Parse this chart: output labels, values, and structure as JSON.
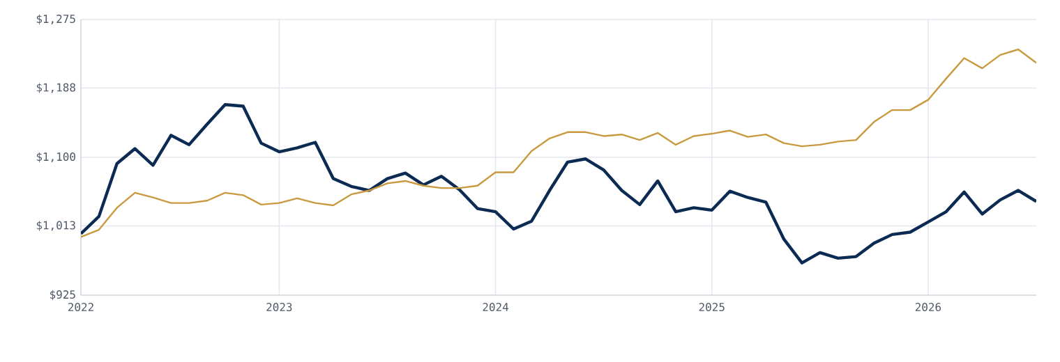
{
  "chart_data": {
    "type": "line",
    "x": [
      "2022-02",
      "2022-03",
      "2022-04",
      "2022-05",
      "2022-06",
      "2022-07",
      "2022-08",
      "2022-09",
      "2022-10",
      "2022-11",
      "2022-12",
      "2023-01",
      "2023-02",
      "2023-03",
      "2023-04",
      "2023-05",
      "2023-06",
      "2023-07",
      "2023-08",
      "2023-09",
      "2023-10",
      "2023-11",
      "2023-12",
      "2024-01",
      "2024-02",
      "2024-03",
      "2024-04",
      "2024-05",
      "2024-06",
      "2024-07",
      "2024-08",
      "2024-09",
      "2024-10",
      "2024-11",
      "2024-12",
      "2025-01",
      "2025-02",
      "2025-03",
      "2025-04",
      "2025-05",
      "2025-06",
      "2025-07",
      "2025-08",
      "2025-09",
      "2025-10",
      "2025-11",
      "2025-12",
      "2026-01",
      "2026-02",
      "2026-03",
      "2026-04",
      "2026-05",
      "2026-06",
      "2026-07"
    ],
    "series": [
      {
        "color": "#0c2b52",
        "values": [
          1003,
          1025,
          1092,
          1111,
          1090,
          1128,
          1116,
          1142,
          1167,
          1165,
          1118,
          1107,
          1112,
          1119,
          1073,
          1063,
          1058,
          1073,
          1080,
          1065,
          1076,
          1059,
          1035,
          1031,
          1009,
          1019,
          1058,
          1094,
          1098,
          1084,
          1058,
          1040,
          1070,
          1031,
          1036,
          1033,
          1057,
          1049,
          1043,
          996,
          966,
          979,
          972,
          974,
          991,
          1002,
          1005,
          1018,
          1031,
          1056,
          1028,
          1046,
          1058,
          1044
        ]
      },
      {
        "color": "#c9993f",
        "values": [
          999,
          1008,
          1036,
          1055,
          1049,
          1042,
          1042,
          1045,
          1055,
          1052,
          1040,
          1042,
          1048,
          1042,
          1039,
          1053,
          1058,
          1067,
          1070,
          1064,
          1061,
          1061,
          1064,
          1081,
          1081,
          1108,
          1124,
          1132,
          1132,
          1127,
          1129,
          1122,
          1131,
          1116,
          1127,
          1130,
          1134,
          1126,
          1129,
          1118,
          1114,
          1116,
          1120,
          1122,
          1145,
          1160,
          1160,
          1173,
          1200,
          1226,
          1213,
          1230,
          1237,
          1220
        ]
      }
    ],
    "xlim": [
      "2022-02",
      "2026-07"
    ],
    "xticks": [
      {
        "value": "2022-02",
        "label": "2022"
      },
      {
        "value": "2023-01",
        "label": "2023"
      },
      {
        "value": "2024-01",
        "label": "2024"
      },
      {
        "value": "2025-01",
        "label": "2025"
      },
      {
        "value": "2026-01",
        "label": "2026"
      }
    ],
    "ylim": [
      925,
      1275
    ],
    "yticks": [
      {
        "value": 925,
        "label": "$925"
      },
      {
        "value": 1013,
        "label": "$1,013"
      },
      {
        "value": 1100,
        "label": "$1,100"
      },
      {
        "value": 1188,
        "label": "$1,188"
      },
      {
        "value": 1275,
        "label": "$1,275"
      }
    ],
    "grid": true,
    "marker": "none",
    "line_style": "solid"
  }
}
